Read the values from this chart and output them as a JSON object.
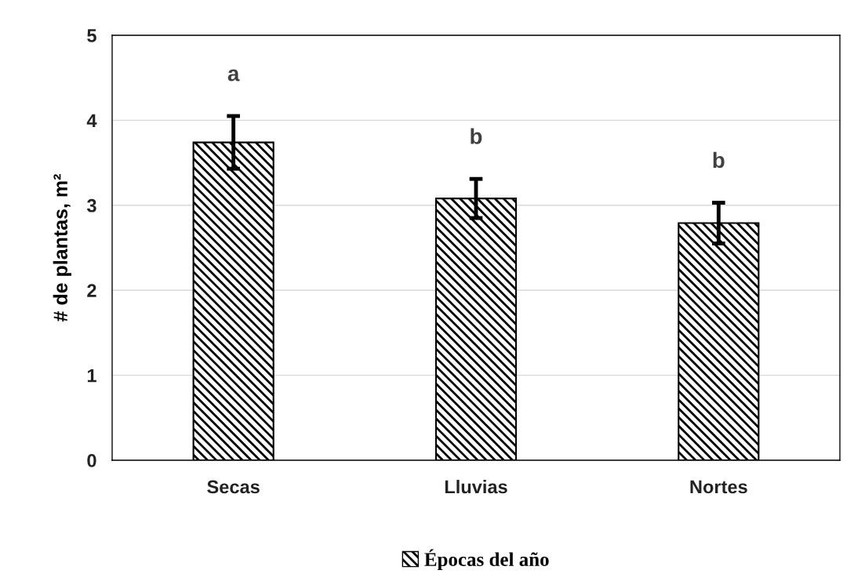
{
  "chart_data": {
    "type": "bar",
    "ylabel": "# de plantas, m²",
    "categories": [
      "Secas",
      "Lluvias",
      "Nortes"
    ],
    "series": [
      {
        "name": "Épocas del año",
        "color": "#000000",
        "values": [
          3.74,
          3.08,
          2.79
        ],
        "errors": [
          0.31,
          0.23,
          0.24
        ]
      }
    ],
    "ylim": [
      0,
      5
    ],
    "yticks": [
      0,
      1,
      2,
      3,
      4,
      5
    ],
    "grid": "y",
    "legend": "bottom",
    "annotations": [
      "a",
      "b",
      "b"
    ]
  }
}
